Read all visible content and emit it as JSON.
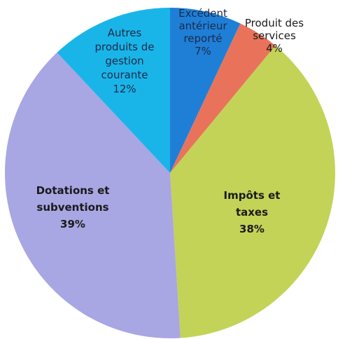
{
  "chart_data": {
    "type": "pie",
    "title": "",
    "slices": [
      {
        "label": [
          "Excédent",
          "antérieur",
          "reporté"
        ],
        "value": 7,
        "percent_label": "7%",
        "color": "#1f7fd6"
      },
      {
        "label": [
          "Produit des",
          "services"
        ],
        "value": 4,
        "percent_label": "4%",
        "color": "#e8735a"
      },
      {
        "label": [
          "Impôts et",
          "taxes"
        ],
        "value": 38,
        "percent_label": "38%",
        "color": "#c3d357"
      },
      {
        "label": [
          "Dotations et",
          "subventions"
        ],
        "value": 39,
        "percent_label": "39%",
        "color": "#a8a6e3"
      },
      {
        "label": [
          "Autres",
          "produits de",
          "gestion",
          "courante"
        ],
        "value": 12,
        "percent_label": "12%",
        "color": "#1ab5e8"
      }
    ],
    "legend": "none"
  }
}
